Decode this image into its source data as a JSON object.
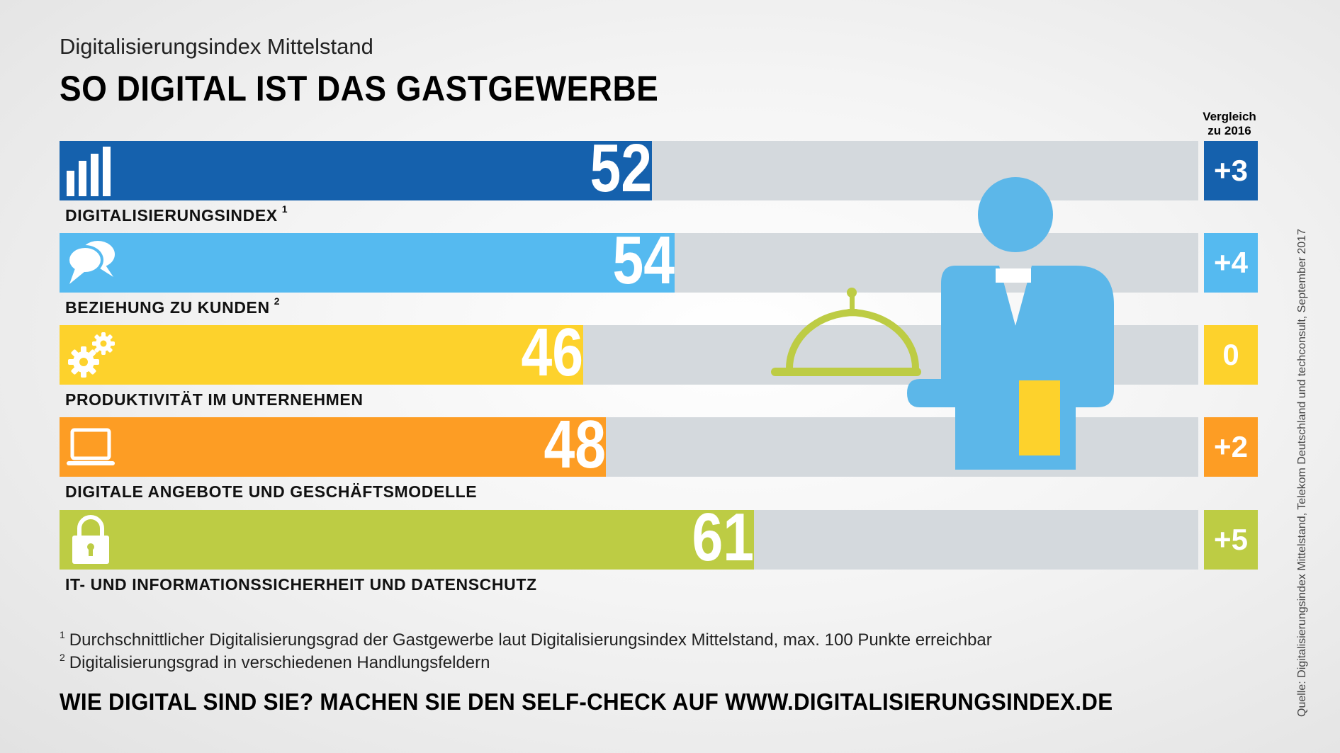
{
  "header": {
    "subtitle": "Digitalisierungsindex Mittelstand",
    "title": "SO DIGITAL IST DAS GASTGEWERBE",
    "compare_line1": "Vergleich",
    "compare_line2": "zu 2016"
  },
  "chart_data": {
    "type": "bar",
    "orientation": "horizontal",
    "ylim": [
      0,
      100
    ],
    "categories": [
      "DIGITALISIERUNGSINDEX",
      "BEZIEHUNG ZU KUNDEN",
      "PRODUKTIVITÄT IM UNTERNEHMEN",
      "DIGITALE ANGEBOTE UND GESCHÄFTSMODELLE",
      "IT- UND INFORMATIONSSICHERHEIT UND DATENSCHUTZ"
    ],
    "values": [
      52,
      54,
      46,
      48,
      61
    ],
    "value_labels": [
      "52",
      "54",
      "46",
      "48",
      "61"
    ],
    "delta_labels": [
      "+3",
      "+4",
      "0",
      "+2",
      "+5"
    ],
    "superscripts": [
      "1",
      "2",
      "",
      "",
      ""
    ],
    "colors": [
      "#1561ad",
      "#55baf0",
      "#fdd22c",
      "#fd9d24",
      "#bdcc44"
    ],
    "icons": [
      "bar-chart-icon",
      "speech-bubbles-icon",
      "gears-icon",
      "laptop-icon",
      "padlock-icon"
    ]
  },
  "footnotes": [
    {
      "num": "1",
      "text": "Durchschnittlicher Digitalisierungsgrad der Gastgewerbe laut Digitalisierungsindex Mittelstand, max. 100 Punkte erreichbar"
    },
    {
      "num": "2",
      "text": "Digitalisierungsgrad in verschiedenen Handlungsfeldern"
    }
  ],
  "cta": "WIE DIGITAL SIND SIE? MACHEN SIE DEN SELF-CHECK AUF WWW.DIGITALISIERUNGSINDEX.DE",
  "source": "Quelle: Digitalisierungsindex Mittelstand, Telekom Deutschland und techconsult, September 2017",
  "illustration": {
    "icon": "waiter-icon",
    "colors": {
      "body": "#5cb7e9",
      "cloche": "#bdcc44",
      "towel": "#fdd22c"
    }
  }
}
